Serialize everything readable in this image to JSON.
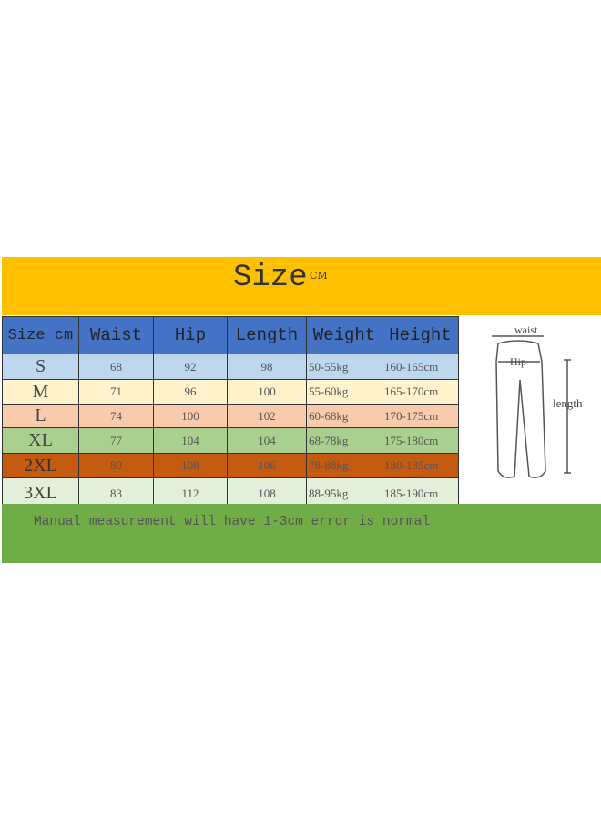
{
  "title": "Size",
  "title_unit": "CM",
  "headers": [
    "Size cm",
    "Waist",
    "Hip",
    "Length",
    "Weight",
    "Height"
  ],
  "rows": [
    {
      "size": "S",
      "waist": "68",
      "hip": "92",
      "length": "98",
      "weight": "50-55kg",
      "height": "160-165cm",
      "color": "#bdd7ee"
    },
    {
      "size": "M",
      "waist": "71",
      "hip": "96",
      "length": "100",
      "weight": "55-60kg",
      "height": "165-170cm",
      "color": "#fff2cc"
    },
    {
      "size": "L",
      "waist": "74",
      "hip": "100",
      "length": "102",
      "weight": "60-68kg",
      "height": "170-175cm",
      "color": "#f8cbad"
    },
    {
      "size": "XL",
      "waist": "77",
      "hip": "104",
      "length": "104",
      "weight": "68-78kg",
      "height": "175-180cm",
      "color": "#a9d08e"
    },
    {
      "size": "2XL",
      "waist": "80",
      "hip": "108",
      "length": "106",
      "weight": "78-88kg",
      "height": "180-185cm",
      "color": "#c55a11"
    },
    {
      "size": "3XL",
      "waist": "83",
      "hip": "112",
      "length": "108",
      "weight": "88-95kg",
      "height": "185-190cm",
      "color": "#e2efda"
    }
  ],
  "diagram": {
    "waist": "waist",
    "hip": "Hip",
    "length": "length"
  },
  "note": "Manual measurement will have 1-3cm error is normal"
}
